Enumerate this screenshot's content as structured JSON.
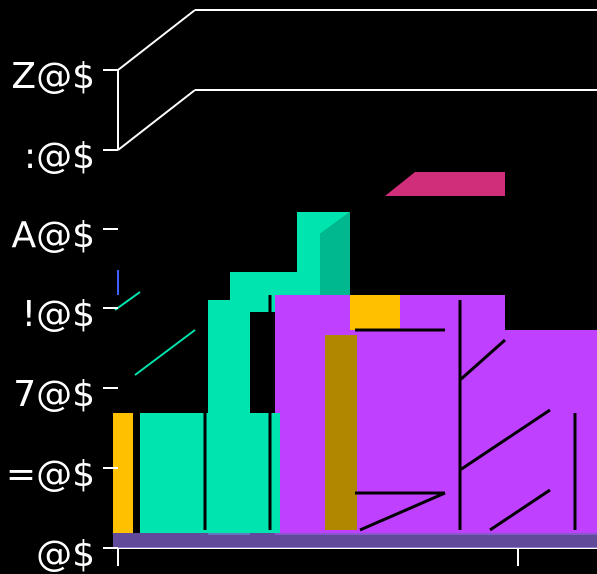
{
  "chart_data": {
    "type": "bar",
    "title": "",
    "xlabel": "",
    "ylabel": "",
    "y_ticks": [
      {
        "label": "@$",
        "value": 0
      },
      {
        "label": "=@$",
        "value": 1
      },
      {
        "label": "7@$",
        "value": 2
      },
      {
        "label": "!@$",
        "value": 3
      },
      {
        "label": "A@$",
        "value": 4
      },
      {
        "label": ":@$",
        "value": 5
      },
      {
        "label": "Z@$",
        "value": 6
      }
    ],
    "ylim": [
      0,
      6
    ],
    "grid": false,
    "projection": "3d",
    "series": [
      {
        "color": "#00e5b0",
        "values": [
          1.7,
          3.3
        ]
      },
      {
        "color": "#c040ff",
        "values": [
          3.1,
          2.7
        ]
      },
      {
        "color": "#ffc000",
        "values": [
          1.7,
          3.1
        ]
      },
      {
        "color": "#b08800",
        "values": [
          2.7
        ]
      },
      {
        "color": "#d02e7a",
        "values": [
          4.5
        ]
      }
    ]
  },
  "colors": {
    "background": "#000000",
    "axis": "#ffffff",
    "teal": "#00e5b0",
    "teal_dark": "#00b890",
    "purple": "#c040ff",
    "gold": "#ffc000",
    "olive": "#b08800",
    "magenta": "#d02e7a"
  }
}
